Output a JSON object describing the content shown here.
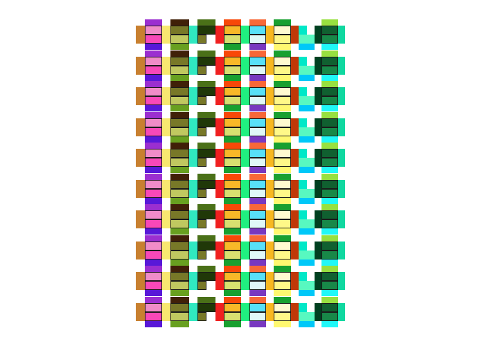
{
  "pattern": {
    "rows": 10,
    "columns": [
      {
        "side": "#c88030",
        "top": "#9b2fd0",
        "cell1": "#f08cc8",
        "cell2": "#f848b8",
        "bottom": "#5818d8"
      },
      {
        "side": "#f8e870",
        "top": "#402008",
        "cell1": "#787828",
        "cell2": "#c0c860",
        "bottom": "#68a020"
      },
      {
        "side": "#30e8c0",
        "top": "#4a7018",
        "cell1": "#203808",
        "cell2": "#787828",
        "bottom": null,
        "cell2_half": true
      },
      {
        "side": "#f02020",
        "top": "#f84808",
        "cell1": "#f8b828",
        "cell2": "#d8e070",
        "bottom": "#18a030"
      },
      {
        "side": "#20f080",
        "top": "#f86838",
        "cell1": "#58e0f8",
        "cell2": "#e0f8f8",
        "bottom": "#7838c0"
      },
      {
        "side": "#f8b820",
        "top": "#18a030",
        "cell1": "#fffad0",
        "cell2": "#fff888",
        "bottom": "#fff870"
      },
      {
        "side": "#c03808",
        "top": null,
        "cell1": "#00e8c8",
        "cell2": "#58f8c0",
        "bottom": "#00c8f8",
        "cell1_half": true,
        "no_border": true
      },
      {
        "side": "#004020",
        "top": "#98e040",
        "cell1": "#106030",
        "cell2": "#188848",
        "bottom": "#20f8f8",
        "right": "#10d8a0"
      }
    ]
  }
}
